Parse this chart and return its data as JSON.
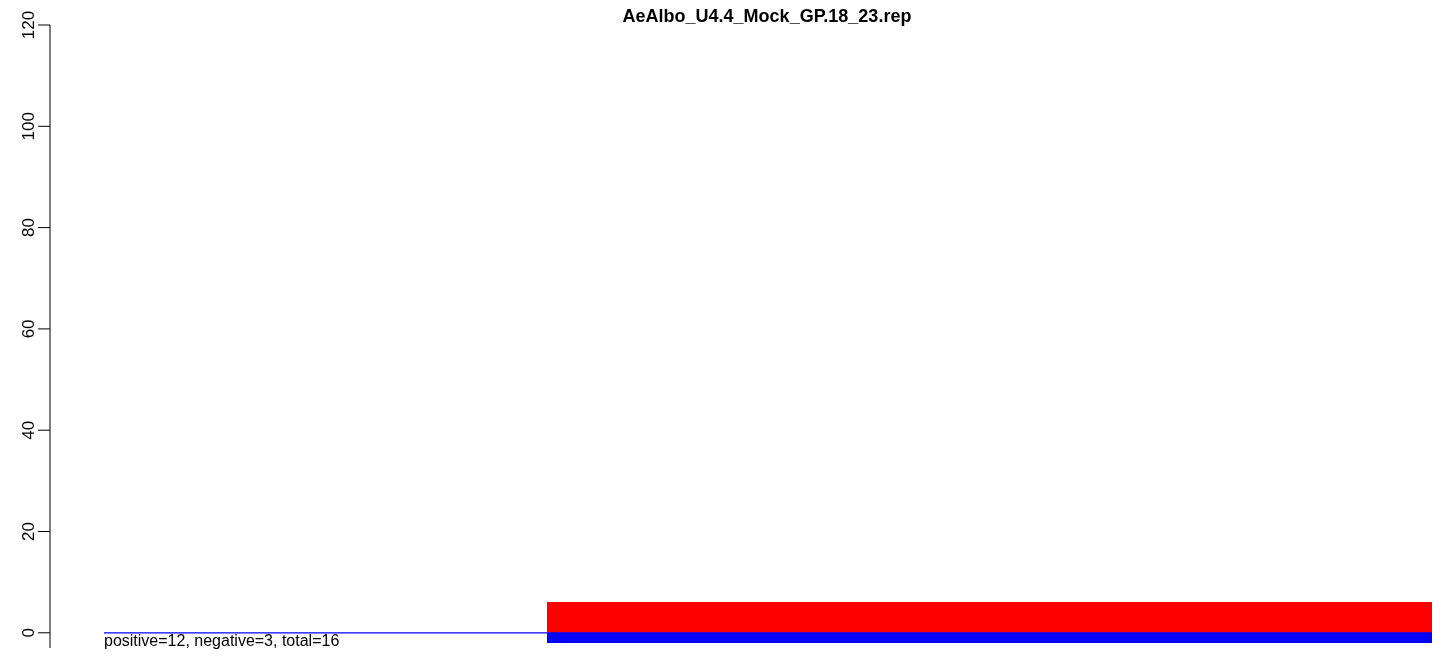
{
  "chart_data": {
    "type": "bar",
    "title": "AeAlbo_U4.4_Mock_GP.18_23.rep",
    "categories": [
      null,
      null,
      null
    ],
    "series": [
      {
        "color": "#ff0000",
        "values": [
          0,
          6,
          6
        ]
      },
      {
        "color": "#0000ff",
        "values": [
          0,
          -2,
          -2
        ]
      }
    ],
    "ylim": [
      -3,
      120
    ],
    "yticks": [
      0,
      20,
      40,
      60,
      80,
      100,
      120
    ],
    "ref_lines": [
      {
        "axis": "y",
        "value": 0,
        "color": "#0000ff"
      }
    ],
    "annotations": [
      "positive=12, negative=3, total=16"
    ],
    "stacked": true,
    "grid": false,
    "tick_labels": "y"
  }
}
